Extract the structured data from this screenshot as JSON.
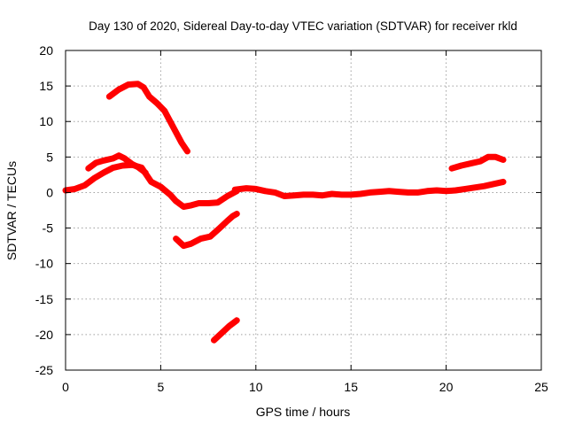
{
  "chart_data": {
    "type": "line",
    "title": "Day 130 of 2020, Sidereal Day-to-day VTEC variation (SDTVAR) for receiver rkld",
    "xlabel": "GPS time / hours",
    "ylabel": "SDTVAR / TECUs",
    "xlim": [
      0,
      25
    ],
    "ylim": [
      -25,
      20
    ],
    "xticks": [
      "0",
      "5",
      "10",
      "15",
      "20",
      "25"
    ],
    "yticks": [
      "20",
      "15",
      "10",
      "5",
      "0",
      "-5",
      "-10",
      "-15",
      "-20",
      "-25"
    ],
    "grid": true,
    "legend": "none",
    "series_color": "#ff0000",
    "series": [
      {
        "name": "arc-high",
        "x": [
          2.3,
          2.8,
          3.3,
          3.8,
          4.1,
          4.4,
          4.8,
          5.2,
          5.5,
          5.8,
          6.1,
          6.4
        ],
        "y": [
          13.5,
          14.5,
          15.2,
          15.3,
          14.8,
          13.5,
          12.6,
          11.5,
          10.0,
          8.5,
          7.0,
          5.8
        ]
      },
      {
        "name": "arc-upper",
        "x": [
          1.2,
          1.6,
          2.0,
          2.5,
          2.8,
          3.1,
          3.5,
          3.8,
          4.2
        ],
        "y": [
          3.4,
          4.2,
          4.5,
          4.8,
          5.2,
          4.8,
          4.0,
          3.6,
          2.8
        ]
      },
      {
        "name": "arc-main",
        "x": [
          0,
          0.5,
          1.0,
          1.5,
          2.0,
          2.5,
          3.0,
          3.5,
          4.0,
          4.5,
          5.0,
          5.5,
          5.8,
          6.2,
          6.6,
          7.0,
          7.5,
          8.0,
          8.5,
          9.0
        ],
        "y": [
          0.3,
          0.5,
          1.0,
          2.0,
          2.8,
          3.5,
          3.8,
          3.9,
          3.5,
          1.5,
          0.8,
          -0.3,
          -1.2,
          -2.0,
          -1.8,
          -1.5,
          -1.5,
          -1.4,
          -0.5,
          0.2
        ]
      },
      {
        "name": "arc-mid-low",
        "x": [
          5.8,
          6.2,
          6.6,
          7.1,
          7.6,
          8.1,
          8.5,
          8.8,
          9.0
        ],
        "y": [
          -6.5,
          -7.5,
          -7.2,
          -6.5,
          -6.2,
          -5.0,
          -4.0,
          -3.3,
          -3.0
        ]
      },
      {
        "name": "arc-low",
        "x": [
          7.8,
          8.2,
          8.6,
          9.0
        ],
        "y": [
          -20.8,
          -19.8,
          -18.8,
          -18.0
        ]
      },
      {
        "name": "arc-flat",
        "x": [
          8.9,
          9.5,
          10.0,
          10.5,
          11.0,
          11.5,
          12.0,
          12.5,
          13.0,
          13.5,
          14.0,
          14.5,
          15.0,
          15.5,
          16.0,
          16.5,
          17.0,
          17.5,
          18.0,
          18.5,
          19.0,
          19.5,
          20.0,
          20.5,
          21.0,
          21.5,
          22.0,
          22.5,
          23.0
        ],
        "y": [
          0.4,
          0.6,
          0.5,
          0.2,
          0.0,
          -0.5,
          -0.4,
          -0.3,
          -0.3,
          -0.4,
          -0.2,
          -0.3,
          -0.3,
          -0.2,
          0.0,
          0.1,
          0.2,
          0.1,
          0.0,
          0.0,
          0.2,
          0.3,
          0.2,
          0.3,
          0.5,
          0.7,
          0.9,
          1.2,
          1.5
        ]
      },
      {
        "name": "arc-late",
        "x": [
          20.3,
          20.8,
          21.3,
          21.8,
          22.2,
          22.6,
          23.0
        ],
        "y": [
          3.4,
          3.8,
          4.1,
          4.4,
          5.0,
          5.0,
          4.6
        ]
      }
    ]
  }
}
